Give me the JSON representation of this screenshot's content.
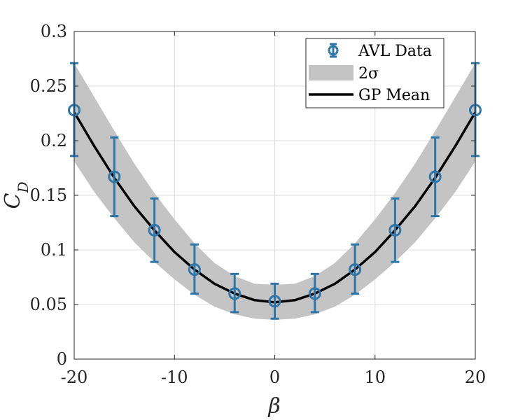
{
  "chart_data": {
    "type": "line",
    "xlabel": "β",
    "ylabel": "C_D",
    "xlim": [
      -20,
      20
    ],
    "ylim": [
      0,
      0.3
    ],
    "xticks": [
      -20,
      -10,
      0,
      10,
      20
    ],
    "xtick_labels": [
      "-20",
      "-10",
      "0",
      "10",
      "20"
    ],
    "yticks": [
      0,
      0.05,
      0.1,
      0.15,
      0.2,
      0.25,
      0.3
    ],
    "ytick_labels": [
      "0",
      "0.05",
      "0.1",
      "0.15",
      "0.2",
      "0.25",
      "0.3"
    ],
    "grid": true,
    "legend_position": "top-right",
    "series": [
      {
        "name": "AVL Data",
        "kind": "errorbar",
        "color": "#2E75A8",
        "x": [
          -20,
          -16,
          -12,
          -8,
          -4,
          0,
          4,
          8,
          12,
          16,
          20
        ],
        "y": [
          0.228,
          0.167,
          0.118,
          0.082,
          0.06,
          0.053,
          0.06,
          0.082,
          0.118,
          0.167,
          0.228
        ],
        "err_low": [
          0.186,
          0.131,
          0.089,
          0.06,
          0.043,
          0.037,
          0.043,
          0.06,
          0.089,
          0.131,
          0.186
        ],
        "err_high": [
          0.271,
          0.203,
          0.147,
          0.105,
          0.078,
          0.069,
          0.078,
          0.105,
          0.147,
          0.203,
          0.271
        ]
      },
      {
        "name": "2σ",
        "kind": "band",
        "color": "#C4C4C4",
        "x": [
          -20,
          -18,
          -16,
          -14,
          -12,
          -10,
          -8,
          -6,
          -4,
          -2,
          0,
          2,
          4,
          6,
          8,
          10,
          12,
          14,
          16,
          18,
          20
        ],
        "lower": [
          0.181,
          0.153,
          0.129,
          0.107,
          0.089,
          0.073,
          0.059,
          0.048,
          0.041,
          0.037,
          0.036,
          0.037,
          0.041,
          0.048,
          0.059,
          0.073,
          0.089,
          0.107,
          0.129,
          0.153,
          0.181
        ],
        "upper": [
          0.271,
          0.24,
          0.209,
          0.179,
          0.152,
          0.128,
          0.106,
          0.088,
          0.076,
          0.069,
          0.068,
          0.069,
          0.076,
          0.088,
          0.106,
          0.128,
          0.152,
          0.179,
          0.209,
          0.24,
          0.271
        ]
      },
      {
        "name": "GP Mean",
        "kind": "line",
        "color": "#000000",
        "x": [
          -20,
          -18,
          -16,
          -14,
          -12,
          -10,
          -8,
          -6,
          -4,
          -2,
          0,
          2,
          4,
          6,
          8,
          10,
          12,
          14,
          16,
          18,
          20
        ],
        "y": [
          0.226,
          0.195,
          0.166,
          0.14,
          0.118,
          0.098,
          0.082,
          0.069,
          0.06,
          0.054,
          0.052,
          0.054,
          0.06,
          0.069,
          0.082,
          0.098,
          0.118,
          0.14,
          0.166,
          0.195,
          0.226
        ]
      }
    ]
  }
}
